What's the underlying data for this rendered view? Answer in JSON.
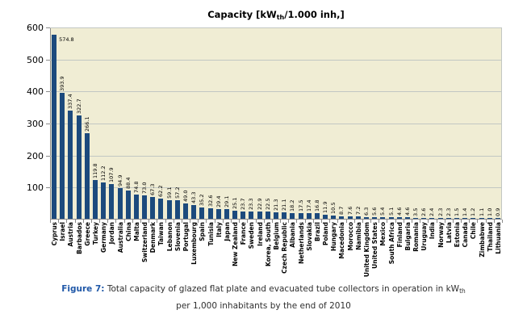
{
  "title": {
    "prefix": "Capacity [kW",
    "subscript": "th",
    "suffix": "/1.000 inh,]"
  },
  "chart_data": {
    "type": "bar",
    "title": "Capacity [kWth/1.000 inh,]",
    "categories": [
      "Cyprus",
      "Israel",
      "Austria",
      "Barbados",
      "Greece",
      "Turkey",
      "Germany",
      "Jordan",
      "Australia",
      "China",
      "Malta",
      "Switzerland",
      "Denmark",
      "Taiwan",
      "Lebanon",
      "Slovenia",
      "Portugal",
      "Luxembourg",
      "Spain",
      "Tunisia",
      "Italy",
      "Japan",
      "New Zealand",
      "France",
      "Sweden",
      "Ireland",
      "Korea, South",
      "Belgium",
      "Czech Republic",
      "Albania",
      "Netherlands",
      "Slovakia",
      "Brazil",
      "Poland",
      "Hungary",
      "Macedonia",
      "Morocco",
      "Namibia",
      "United Kingdom",
      "United States",
      "Mexico",
      "South Africa",
      "Finland",
      "Bulgaria",
      "Romania",
      "Uruguay",
      "India",
      "Norway",
      "Latvia",
      "Estonia",
      "Canada",
      "Chile",
      "Zimbabwe",
      "Thailand",
      "Lithuania"
    ],
    "values": [
      574.8,
      393.9,
      337.4,
      322.7,
      266.1,
      119.8,
      112.2,
      107.9,
      94.9,
      88.4,
      74.8,
      73.0,
      67.3,
      62.2,
      59.1,
      57.2,
      49.0,
      43.3,
      35.2,
      32.6,
      29.4,
      29.1,
      25.1,
      23.7,
      23.3,
      22.9,
      22.5,
      21.3,
      21.1,
      18.2,
      17.5,
      17.4,
      16.8,
      11.9,
      10.5,
      8.7,
      7.6,
      7.2,
      6.3,
      5.6,
      5.4,
      5.1,
      4.6,
      4.6,
      3.5,
      2.6,
      2.4,
      2.3,
      2.3,
      1.5,
      1.4,
      1.2,
      1.1,
      1.0,
      0.9
    ],
    "ylim": [
      0,
      600
    ],
    "yticks": [
      100,
      200,
      300,
      400,
      500,
      600
    ],
    "grid": true,
    "value_labels": true,
    "bar_color": "#1c4a7d",
    "plot_background": "#f0edd4",
    "xlabel": "",
    "ylabel": ""
  },
  "caption": {
    "label": "Figure 7:",
    "text": "Total capacity of glazed flat plate and evacuated tube collectors in operation in kW",
    "subscript": "th",
    "line2": "per 1,000 inhabitants by the end of 2010"
  }
}
